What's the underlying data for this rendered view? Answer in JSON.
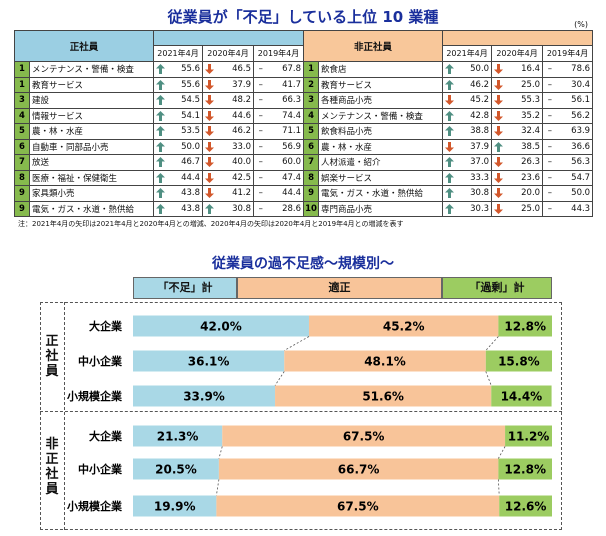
{
  "title": "従業員が「不足」している上位 10 業種",
  "unit": "(%)",
  "regular_header": "正社員",
  "nonregular_header": "非正社員",
  "years": [
    "2021年4月",
    "2020年4月",
    "2019年4月"
  ],
  "regular": [
    {
      "rank": "1",
      "name": "メンテナンス・警備・検査",
      "v2021": "55.6",
      "v2020": "46.5",
      "v2019": "67.8",
      "a2021": "up",
      "a2020": "down"
    },
    {
      "rank": "1",
      "name": "教育サービス",
      "v2021": "55.6",
      "v2020": "37.9",
      "v2019": "41.7",
      "a2021": "up",
      "a2020": "down"
    },
    {
      "rank": "3",
      "name": "建設",
      "v2021": "54.5",
      "v2020": "48.2",
      "v2019": "66.3",
      "a2021": "up",
      "a2020": "down"
    },
    {
      "rank": "4",
      "name": "情報サービス",
      "v2021": "54.1",
      "v2020": "44.6",
      "v2019": "74.4",
      "a2021": "up",
      "a2020": "down"
    },
    {
      "rank": "5",
      "name": "農・林・水産",
      "v2021": "53.5",
      "v2020": "46.2",
      "v2019": "71.1",
      "a2021": "up",
      "a2020": "down"
    },
    {
      "rank": "6",
      "name": "自動車・同部品小売",
      "v2021": "50.0",
      "v2020": "33.0",
      "v2019": "56.9",
      "a2021": "up",
      "a2020": "down"
    },
    {
      "rank": "7",
      "name": "放送",
      "v2021": "46.7",
      "v2020": "40.0",
      "v2019": "60.0",
      "a2021": "up",
      "a2020": "down"
    },
    {
      "rank": "8",
      "name": "医療・福祉・保健衛生",
      "v2021": "44.4",
      "v2020": "42.5",
      "v2019": "47.4",
      "a2021": "up",
      "a2020": "down"
    },
    {
      "rank": "9",
      "name": "家具類小売",
      "v2021": "43.8",
      "v2020": "41.2",
      "v2019": "44.4",
      "a2021": "up",
      "a2020": "down"
    },
    {
      "rank": "9",
      "name": "電気・ガス・水道・熱供給",
      "v2021": "43.8",
      "v2020": "30.8",
      "v2019": "28.6",
      "a2021": "up",
      "a2020": "up"
    }
  ],
  "nonregular": [
    {
      "rank": "1",
      "name": "飲食店",
      "v2021": "50.0",
      "v2020": "16.4",
      "v2019": "78.6",
      "a2021": "up",
      "a2020": "down"
    },
    {
      "rank": "2",
      "name": "教育サービス",
      "v2021": "46.2",
      "v2020": "25.0",
      "v2019": "30.4",
      "a2021": "up",
      "a2020": "down"
    },
    {
      "rank": "3",
      "name": "各種商品小売",
      "v2021": "45.2",
      "v2020": "55.3",
      "v2019": "56.1",
      "a2021": "down",
      "a2020": "down"
    },
    {
      "rank": "4",
      "name": "メンテナンス・警備・検査",
      "v2021": "42.8",
      "v2020": "35.2",
      "v2019": "56.2",
      "a2021": "up",
      "a2020": "down"
    },
    {
      "rank": "5",
      "name": "飲食料品小売",
      "v2021": "38.8",
      "v2020": "32.4",
      "v2019": "63.9",
      "a2021": "up",
      "a2020": "down"
    },
    {
      "rank": "6",
      "name": "農・林・水産",
      "v2021": "37.9",
      "v2020": "38.5",
      "v2019": "36.6",
      "a2021": "down",
      "a2020": "up"
    },
    {
      "rank": "7",
      "name": "人材派遣・紹介",
      "v2021": "37.0",
      "v2020": "26.3",
      "v2019": "56.3",
      "a2021": "up",
      "a2020": "down"
    },
    {
      "rank": "8",
      "name": "娯楽サービス",
      "v2021": "33.3",
      "v2020": "23.6",
      "v2019": "54.7",
      "a2021": "up",
      "a2020": "down"
    },
    {
      "rank": "9",
      "name": "電気・ガス・水道・熱供給",
      "v2021": "30.8",
      "v2020": "20.0",
      "v2019": "50.0",
      "a2021": "up",
      "a2020": "down"
    },
    {
      "rank": "10",
      "name": "専門商品小売",
      "v2021": "30.3",
      "v2020": "25.0",
      "v2019": "44.3",
      "a2021": "up",
      "a2020": "down"
    }
  ],
  "dash": "–",
  "note": "注：2021年4月の矢印は2021年4月と2020年4月との増減、2020年4月の矢印は2020年4月と2019年4月との増減を表す",
  "colors": {
    "up": "#4f8f82",
    "down": "#d2572b",
    "shortage": "#a9d8e6",
    "proper": "#f8c499",
    "excess": "#9ccc61",
    "rank": "#86ba4d"
  },
  "chart_data": {
    "type": "bar",
    "stacked": true,
    "orientation": "horizontal",
    "title": "従業員の過不足感～規模別～",
    "legend": [
      "「不足」計",
      "適正",
      "「過剰」計"
    ],
    "groups": [
      "正社員",
      "非正社員"
    ],
    "categories": [
      "大企業",
      "中小企業",
      "小規模企業",
      "大企業",
      "中小企業",
      "小規模企業"
    ],
    "series": [
      {
        "name": "「不足」計",
        "values": [
          42.0,
          36.1,
          33.9,
          21.3,
          20.5,
          19.9
        ]
      },
      {
        "name": "適正",
        "values": [
          45.2,
          48.1,
          51.6,
          67.5,
          66.7,
          67.5
        ]
      },
      {
        "name": "「過剰」計",
        "values": [
          12.8,
          15.8,
          14.4,
          11.2,
          12.8,
          12.6
        ]
      }
    ],
    "labels": [
      [
        "42.0%",
        "45.2%",
        "12.8%"
      ],
      [
        "36.1%",
        "48.1%",
        "15.8%"
      ],
      [
        "33.9%",
        "51.6%",
        "14.4%"
      ],
      [
        "21.3%",
        "67.5%",
        "11.2%"
      ],
      [
        "20.5%",
        "66.7%",
        "12.8%"
      ],
      [
        "19.9%",
        "67.5%",
        "12.6%"
      ]
    ],
    "xlim": [
      0,
      100
    ]
  }
}
